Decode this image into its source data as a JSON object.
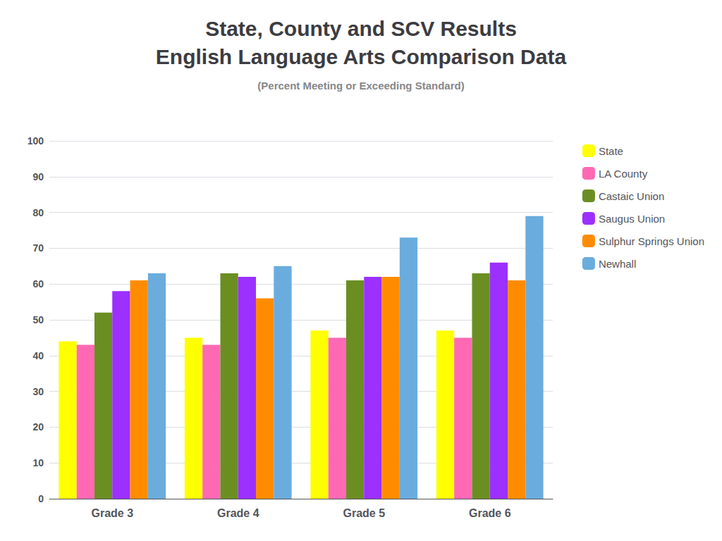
{
  "chart_data": {
    "type": "bar",
    "title": "State, County and SCV Results\nEnglish Language Arts Comparison Data",
    "subtitle": "(Percent Meeting or Exceeding Standard)",
    "categories": [
      "Grade 3",
      "Grade 4",
      "Grade 5",
      "Grade 6"
    ],
    "series": [
      {
        "name": "State",
        "color": "#ffff00",
        "values": [
          44,
          45,
          47,
          47
        ]
      },
      {
        "name": "LA County",
        "color": "#ff69b4",
        "values": [
          43,
          43,
          45,
          45
        ]
      },
      {
        "name": "Castaic Union",
        "color": "#6b8e23",
        "values": [
          52,
          63,
          61,
          63
        ]
      },
      {
        "name": "Saugus Union",
        "color": "#9b30ff",
        "values": [
          58,
          62,
          62,
          66
        ]
      },
      {
        "name": "Sulphur Springs Union",
        "color": "#ff8c00",
        "values": [
          61,
          56,
          62,
          61
        ]
      },
      {
        "name": "Newhall",
        "color": "#6aacdd",
        "values": [
          63,
          65,
          73,
          79
        ]
      }
    ],
    "ylim": [
      0,
      100
    ],
    "yticks": [
      0,
      10,
      20,
      30,
      40,
      50,
      60,
      70,
      80,
      90,
      100
    ],
    "grid": true,
    "legend": "right"
  }
}
